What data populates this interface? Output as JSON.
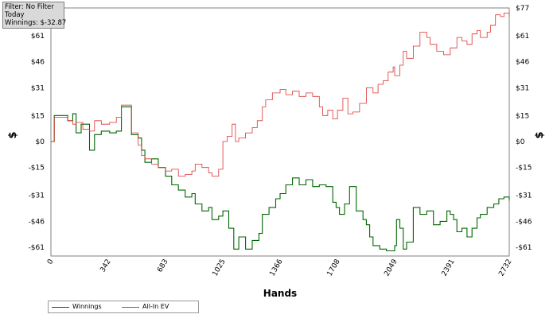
{
  "filter_box": {
    "line1": "Filter: No Filter",
    "line2": "Today",
    "line3": "Winnings: $-32.87"
  },
  "legend": {
    "items": [
      {
        "label": "Winnings",
        "color": "#006600"
      },
      {
        "label": "All-In EV",
        "color": "#dd3333"
      }
    ]
  },
  "colors": {
    "winnings": "#006600",
    "allin_ev": "#dd3333",
    "grid": "#b5b5b5",
    "zero_line": "#000000",
    "axis": "#808080"
  },
  "chart_data": {
    "type": "line",
    "xlabel": "Hands",
    "ylabel_left": "$",
    "ylabel_right": "$",
    "xlim": [
      0,
      2732
    ],
    "ylim": [
      -66,
      77
    ],
    "x_ticks": [
      0,
      342,
      683,
      1025,
      1366,
      1708,
      2049,
      2391,
      2732
    ],
    "y_ticks": [
      77,
      61,
      46,
      31,
      15,
      0,
      -15,
      -31,
      -46,
      -61
    ],
    "y_tick_labels": [
      "$77",
      "$61",
      "$46",
      "$31",
      "$15",
      "$0",
      "-$15",
      "-$31",
      "-$46",
      "-$61"
    ],
    "grid": true,
    "series": [
      {
        "name": "Winnings",
        "color": "#006600",
        "points": [
          [
            0,
            0
          ],
          [
            20,
            15
          ],
          [
            100,
            12
          ],
          [
            130,
            16
          ],
          [
            150,
            5
          ],
          [
            180,
            10
          ],
          [
            230,
            -5
          ],
          [
            260,
            4
          ],
          [
            300,
            6
          ],
          [
            350,
            5
          ],
          [
            390,
            6
          ],
          [
            420,
            20
          ],
          [
            460,
            20
          ],
          [
            480,
            4
          ],
          [
            520,
            2
          ],
          [
            540,
            -5
          ],
          [
            560,
            -12
          ],
          [
            600,
            -10
          ],
          [
            640,
            -15
          ],
          [
            683,
            -20
          ],
          [
            720,
            -25
          ],
          [
            760,
            -28
          ],
          [
            800,
            -32
          ],
          [
            840,
            -30
          ],
          [
            860,
            -36
          ],
          [
            900,
            -40
          ],
          [
            940,
            -38
          ],
          [
            960,
            -45
          ],
          [
            1000,
            -43
          ],
          [
            1025,
            -40
          ],
          [
            1060,
            -50
          ],
          [
            1090,
            -62
          ],
          [
            1120,
            -55
          ],
          [
            1160,
            -62
          ],
          [
            1200,
            -57
          ],
          [
            1240,
            -53
          ],
          [
            1260,
            -42
          ],
          [
            1300,
            -38
          ],
          [
            1340,
            -33
          ],
          [
            1366,
            -30
          ],
          [
            1400,
            -25
          ],
          [
            1440,
            -21
          ],
          [
            1480,
            -25
          ],
          [
            1520,
            -22
          ],
          [
            1560,
            -26
          ],
          [
            1600,
            -25
          ],
          [
            1640,
            -26
          ],
          [
            1680,
            -35
          ],
          [
            1700,
            -38
          ],
          [
            1720,
            -42
          ],
          [
            1750,
            -36
          ],
          [
            1780,
            -26
          ],
          [
            1820,
            -40
          ],
          [
            1860,
            -45
          ],
          [
            1880,
            -48
          ],
          [
            1900,
            -55
          ],
          [
            1920,
            -60
          ],
          [
            1960,
            -62
          ],
          [
            2000,
            -63
          ],
          [
            2049,
            -60
          ],
          [
            2060,
            -45
          ],
          [
            2080,
            -50
          ],
          [
            2100,
            -62
          ],
          [
            2120,
            -58
          ],
          [
            2160,
            -38
          ],
          [
            2200,
            -42
          ],
          [
            2240,
            -40
          ],
          [
            2280,
            -48
          ],
          [
            2320,
            -46
          ],
          [
            2360,
            -40
          ],
          [
            2380,
            -42
          ],
          [
            2400,
            -45
          ],
          [
            2420,
            -52
          ],
          [
            2450,
            -50
          ],
          [
            2480,
            -55
          ],
          [
            2510,
            -50
          ],
          [
            2540,
            -44
          ],
          [
            2560,
            -42
          ],
          [
            2600,
            -38
          ],
          [
            2640,
            -36
          ],
          [
            2670,
            -33
          ],
          [
            2700,
            -32
          ],
          [
            2732,
            -34
          ]
        ]
      },
      {
        "name": "All-In EV",
        "color": "#dd3333",
        "points": [
          [
            0,
            0
          ],
          [
            20,
            14
          ],
          [
            100,
            12
          ],
          [
            130,
            10
          ],
          [
            150,
            11
          ],
          [
            190,
            7
          ],
          [
            230,
            6
          ],
          [
            260,
            12
          ],
          [
            300,
            10
          ],
          [
            350,
            11
          ],
          [
            390,
            14
          ],
          [
            420,
            21
          ],
          [
            460,
            21
          ],
          [
            480,
            5
          ],
          [
            520,
            -2
          ],
          [
            540,
            -8
          ],
          [
            560,
            -10
          ],
          [
            600,
            -13
          ],
          [
            640,
            -15
          ],
          [
            683,
            -17
          ],
          [
            720,
            -16
          ],
          [
            760,
            -20
          ],
          [
            800,
            -19
          ],
          [
            840,
            -17
          ],
          [
            860,
            -13
          ],
          [
            900,
            -15
          ],
          [
            940,
            -18
          ],
          [
            960,
            -20
          ],
          [
            1000,
            -16
          ],
          [
            1025,
            0
          ],
          [
            1050,
            3
          ],
          [
            1080,
            10
          ],
          [
            1100,
            0
          ],
          [
            1120,
            2
          ],
          [
            1160,
            5
          ],
          [
            1200,
            8
          ],
          [
            1230,
            12
          ],
          [
            1260,
            20
          ],
          [
            1280,
            24
          ],
          [
            1320,
            28
          ],
          [
            1366,
            30
          ],
          [
            1400,
            27
          ],
          [
            1440,
            29
          ],
          [
            1480,
            26
          ],
          [
            1520,
            28
          ],
          [
            1560,
            26
          ],
          [
            1600,
            20
          ],
          [
            1620,
            15
          ],
          [
            1650,
            18
          ],
          [
            1680,
            13
          ],
          [
            1708,
            18
          ],
          [
            1740,
            25
          ],
          [
            1770,
            16
          ],
          [
            1800,
            17
          ],
          [
            1840,
            22
          ],
          [
            1880,
            31
          ],
          [
            1920,
            28
          ],
          [
            1950,
            33
          ],
          [
            1980,
            35
          ],
          [
            2010,
            40
          ],
          [
            2040,
            43
          ],
          [
            2049,
            38
          ],
          [
            2080,
            44
          ],
          [
            2100,
            52
          ],
          [
            2120,
            48
          ],
          [
            2160,
            55
          ],
          [
            2200,
            63
          ],
          [
            2240,
            60
          ],
          [
            2260,
            56
          ],
          [
            2300,
            52
          ],
          [
            2340,
            50
          ],
          [
            2380,
            54
          ],
          [
            2420,
            60
          ],
          [
            2450,
            58
          ],
          [
            2480,
            56
          ],
          [
            2510,
            62
          ],
          [
            2540,
            64
          ],
          [
            2560,
            60
          ],
          [
            2600,
            63
          ],
          [
            2620,
            67
          ],
          [
            2650,
            73
          ],
          [
            2680,
            72
          ],
          [
            2700,
            74
          ],
          [
            2732,
            72
          ]
        ]
      }
    ]
  }
}
